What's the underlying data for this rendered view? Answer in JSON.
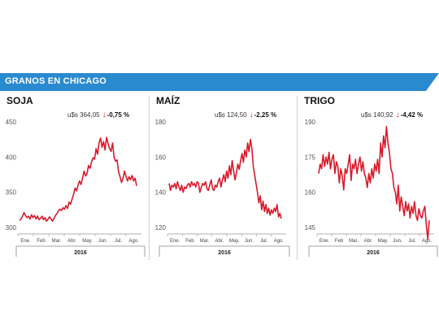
{
  "header": {
    "title": "GRANOS EN CHICAGO"
  },
  "colors": {
    "banner": "#2a8ad0",
    "line": "#d81b2a",
    "arrow": "#e2231a"
  },
  "chart_data": [
    {
      "type": "line",
      "name": "SOJA",
      "price_label": "u$s 364,05",
      "change_label": "-0,75 %",
      "year_label": "2016",
      "ylim": [
        300,
        450
      ],
      "yticks": [
        300,
        350,
        400,
        450
      ],
      "xtick_labels": [
        "Ene.",
        "Feb",
        "Mar.",
        "Abr.",
        "May.",
        "Jun.",
        "Jul.",
        "Ago."
      ],
      "series": [
        {
          "values": [
            310,
            312,
            316,
            321,
            317,
            314,
            316,
            312,
            318,
            314,
            317,
            312,
            316,
            311,
            313,
            316,
            311,
            314,
            309,
            312,
            315,
            312,
            309,
            313,
            317,
            320,
            324,
            326,
            324,
            328,
            326,
            331,
            327,
            336,
            333,
            340,
            347,
            356,
            352,
            360,
            366,
            361,
            370,
            380,
            373,
            377,
            388,
            384,
            393,
            399,
            397,
            412,
            404,
            420,
            427,
            414,
            422,
            410,
            428,
            419,
            412,
            408,
            420,
            400,
            394,
            396,
            379,
            372,
            364,
            370,
            380,
            372,
            366,
            372,
            368,
            374,
            366,
            370,
            359
          ]
        }
      ]
    },
    {
      "type": "line",
      "name": "MAÍZ",
      "price_label": "u$s 124,50",
      "change_label": "-2,25 %",
      "year_label": "2016",
      "ylim": [
        120,
        180
      ],
      "yticks": [
        120,
        140,
        160,
        180
      ],
      "xtick_labels": [
        "Ene.",
        "Feb",
        "Mar.",
        "Abr.",
        "May.",
        "Jun.",
        "Jul.",
        "Ago."
      ],
      "series": [
        {
          "values": [
            145,
            141,
            144,
            143,
            145,
            142,
            146,
            143,
            141,
            144,
            140,
            143,
            142,
            144,
            145,
            143,
            146,
            144,
            145,
            143,
            146,
            145,
            140,
            143,
            145,
            144,
            146,
            142,
            141,
            144,
            147,
            142,
            141,
            144,
            143,
            146,
            148,
            143,
            147,
            150,
            146,
            152,
            148,
            155,
            150,
            158,
            152,
            147,
            151,
            156,
            153,
            158,
            162,
            157,
            164,
            160,
            168,
            163,
            170,
            165,
            155,
            150,
            145,
            140,
            134,
            138,
            130,
            135,
            129,
            133,
            128,
            131,
            127,
            130,
            128,
            131,
            129,
            133,
            126,
            128,
            125
          ]
        }
      ]
    },
    {
      "type": "line",
      "name": "TRIGO",
      "price_label": "u$s 140,92",
      "change_label": "-4,42 %",
      "year_label": "2016",
      "ylim": [
        145,
        190
      ],
      "yticks": [
        145,
        160,
        175,
        190
      ],
      "xtick_labels": [
        "Ene.",
        "Feb",
        "Mar.",
        "Abr.",
        "May.",
        "Jun.",
        "Jul.",
        "Ago."
      ],
      "series": [
        {
          "values": [
            168,
            172,
            170,
            176,
            171,
            175,
            172,
            177,
            170,
            174,
            176,
            168,
            173,
            171,
            164,
            170,
            167,
            161,
            170,
            168,
            172,
            176,
            165,
            172,
            170,
            174,
            168,
            172,
            175,
            169,
            173,
            168,
            166,
            162,
            168,
            164,
            170,
            166,
            172,
            169,
            174,
            168,
            181,
            175,
            184,
            179,
            188,
            181,
            177,
            170,
            168,
            162,
            160,
            155,
            163,
            152,
            158,
            154,
            150,
            156,
            152,
            155,
            149,
            154,
            151,
            156,
            150,
            148,
            153,
            150,
            149,
            152,
            154,
            146,
            140,
            148
          ]
        }
      ]
    }
  ]
}
